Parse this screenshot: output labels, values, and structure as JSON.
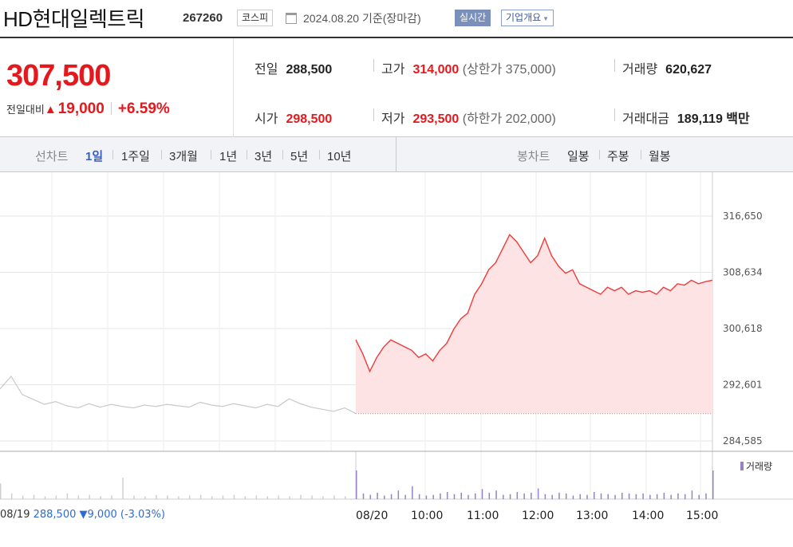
{
  "header": {
    "name": "HD현대일렉트릭",
    "code": "267260",
    "market": "코스피",
    "date": "2024.08.20 기준(장마감)",
    "realtime_label": "실시간",
    "company_label": "기업개요"
  },
  "summary": {
    "price": "307,500",
    "change_label": "전일대비",
    "change_amount": "19,000",
    "change_rate": "+6.59%",
    "prev_close": {
      "label": "전일",
      "value": "288,500"
    },
    "high": {
      "label": "고가",
      "value": "314,000",
      "sub": "(상한가 375,000)"
    },
    "volume": {
      "label": "거래량",
      "value": "620,627"
    },
    "open": {
      "label": "시가",
      "value": "298,500"
    },
    "low": {
      "label": "저가",
      "value": "293,500",
      "sub": "(하한가 202,000)"
    },
    "turnover": {
      "label": "거래대금",
      "value": "189,119",
      "unit": "백만"
    }
  },
  "tabs": {
    "line_title": "선차트",
    "line": [
      "1일",
      "1주일",
      "3개월",
      "1년",
      "3년",
      "5년",
      "10년"
    ],
    "line_active": "1일",
    "candle_title": "봉차트",
    "candle": [
      "일봉",
      "주봉",
      "월봉"
    ]
  },
  "chart_data": {
    "type": "line",
    "y_ticks": [
      "316,650",
      "308,634",
      "300,618",
      "292,601",
      "284,585"
    ],
    "x_ticks": [
      "08/20",
      "10:00",
      "11:00",
      "12:00",
      "13:00",
      "14:00",
      "15:00"
    ],
    "ylim": [
      284585,
      316650
    ],
    "prev_close": 288500,
    "prev_day_series": [
      292000,
      293800,
      291200,
      290500,
      289800,
      290200,
      289600,
      289300,
      289900,
      289400,
      289800,
      289500,
      289300,
      289700,
      289500,
      289800,
      289600,
      289400,
      290100,
      289700,
      289500,
      289900,
      289600,
      289300,
      289800,
      289500,
      290600,
      289900,
      289400,
      289100,
      288800,
      289300,
      288500
    ],
    "series": [
      {
        "values": [
          299000,
          297000,
          294500,
          296500,
          298000,
          299000,
          298500,
          298000,
          297500,
          296500,
          297000,
          296000,
          297500,
          298500,
          300500,
          302000,
          302800,
          305500,
          307000,
          309000,
          310000,
          312000,
          314000,
          313000,
          311500,
          310000,
          311000,
          313500,
          311000,
          309500,
          308500,
          309000,
          307000,
          306500,
          306000,
          305500,
          306500,
          306000,
          306500,
          305500,
          306000,
          305800,
          306000,
          305500,
          306500,
          306000,
          307000,
          306800,
          307500,
          307000,
          307300,
          307500
        ]
      }
    ],
    "volume_label": "거래량",
    "volume": [
      40,
      8,
      6,
      9,
      5,
      7,
      12,
      6,
      18,
      7,
      5,
      6,
      8,
      10,
      7,
      9,
      6,
      8,
      14,
      9,
      12,
      6,
      7,
      10,
      8,
      9,
      15,
      7,
      6,
      9,
      8,
      5,
      7,
      6,
      10,
      8,
      7,
      6,
      9,
      8,
      7,
      8,
      6,
      7,
      9,
      6,
      8,
      7,
      12,
      6,
      8,
      40
    ],
    "prev_volume": [
      22,
      8,
      5,
      6,
      4,
      5,
      8,
      5,
      6,
      4,
      5,
      30,
      5,
      4,
      6,
      5,
      4,
      5,
      6,
      4,
      5,
      6,
      4,
      5,
      4,
      5,
      4,
      6,
      5,
      4,
      5,
      4,
      6
    ]
  },
  "prev_day": {
    "date": "08/19",
    "close": "288,500",
    "change": "▼9,000",
    "rate": "(-3.03%)"
  }
}
